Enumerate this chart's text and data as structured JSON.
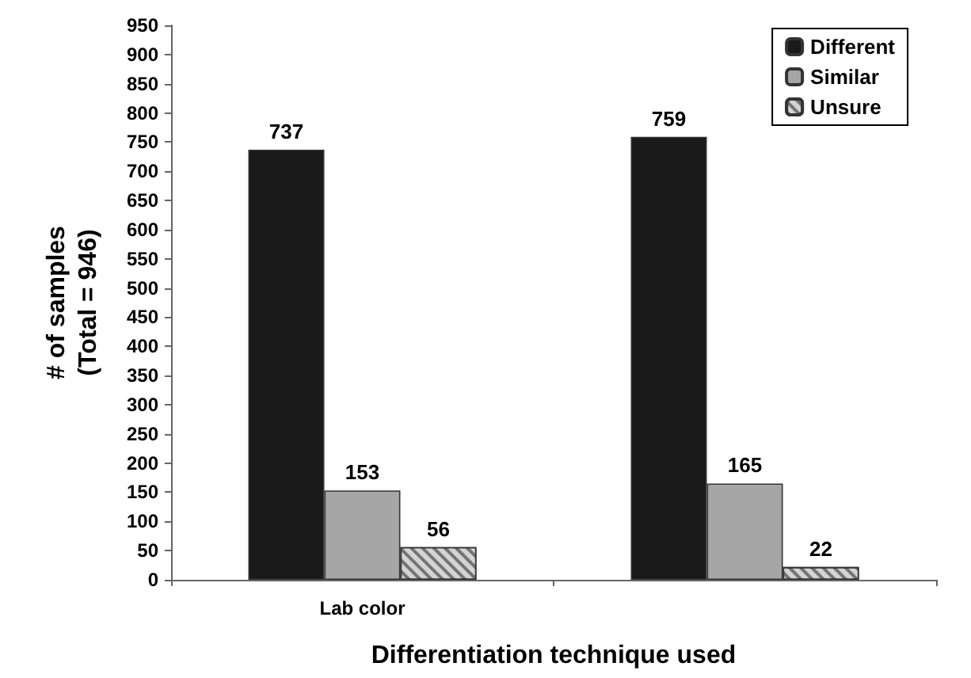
{
  "chart_data": {
    "type": "bar",
    "xlabel": "Differentiation technique used",
    "ylabel": "# of samples\n(Total = 946)",
    "categories": [
      "Lab color",
      null
    ],
    "series": [
      {
        "name": "Different",
        "color": "#1a1a1a",
        "values": [
          737,
          759
        ]
      },
      {
        "name": "Similar",
        "color": "#a6a6a6",
        "values": [
          153,
          165
        ]
      },
      {
        "name": "Unsure",
        "color": "#d4d4d4",
        "values": [
          56,
          22
        ]
      }
    ],
    "ylim": [
      0,
      950
    ],
    "yticks": [
      0,
      50,
      100,
      150,
      200,
      250,
      300,
      350,
      400,
      450,
      500,
      550,
      600,
      650,
      700,
      750,
      800,
      850,
      900,
      950
    ],
    "data_labels": true,
    "grid": false,
    "legend": "top right"
  }
}
